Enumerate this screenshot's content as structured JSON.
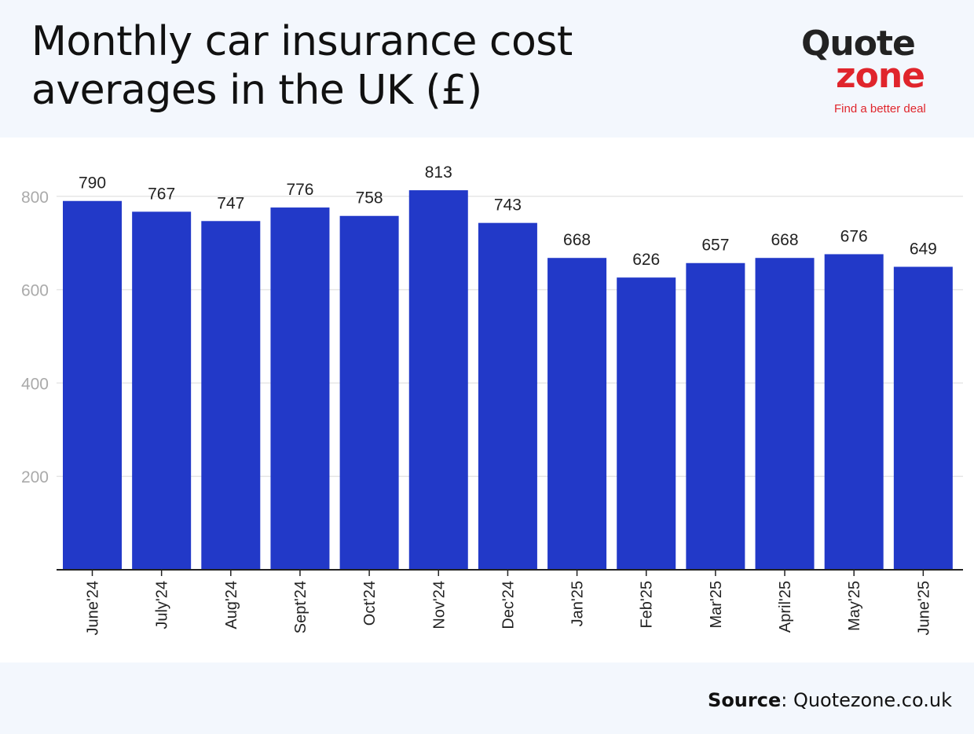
{
  "header": {
    "title_line1": "Monthly car insurance cost",
    "title_line2": "averages in the UK (£)"
  },
  "logo": {
    "word_top": "Quote",
    "word_bottom": "zone",
    "tagline": "Find a better deal",
    "dark_color": "#222222",
    "accent_color": "#e0252c"
  },
  "footer": {
    "source_label": "Source",
    "source_value": "Quotezone.co.uk"
  },
  "chart_data": {
    "type": "bar",
    "title": "Monthly car insurance cost averages in the UK (£)",
    "xlabel": "",
    "ylabel": "",
    "categories": [
      "June'24",
      "July'24",
      "Aug'24",
      "Sept'24",
      "Oct'24",
      "Nov'24",
      "Dec'24",
      "Jan'25",
      "Feb'25",
      "Mar'25",
      "April'25",
      "May'25",
      "June'25"
    ],
    "values": [
      790,
      767,
      747,
      776,
      758,
      813,
      743,
      668,
      626,
      657,
      668,
      676,
      649
    ],
    "ylim": [
      0,
      880
    ],
    "yticks": [
      200,
      400,
      600,
      800
    ],
    "grid": true,
    "bar_color": "#2239c8",
    "legend": "none"
  }
}
